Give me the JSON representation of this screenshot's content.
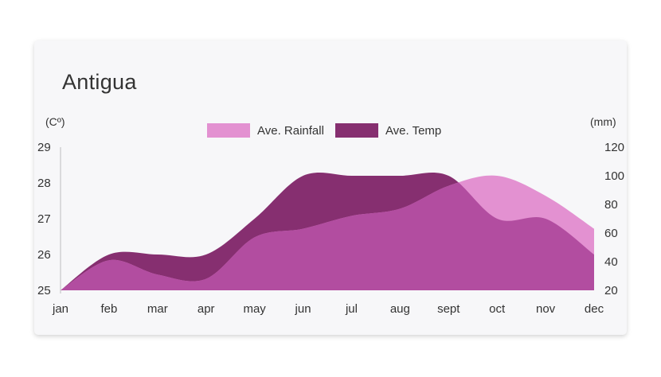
{
  "chart_data": {
    "type": "area",
    "title": "Antigua",
    "categories": [
      "jan",
      "feb",
      "mar",
      "apr",
      "may",
      "jun",
      "jul",
      "aug",
      "sept",
      "oct",
      "nov",
      "dec"
    ],
    "left_axis": {
      "unit_label": "(Cº)",
      "min": 25,
      "max": 29,
      "ticks": [
        "25",
        "26",
        "27",
        "28",
        "29"
      ]
    },
    "right_axis": {
      "unit_label": "(mm)",
      "min": 20,
      "max": 120,
      "ticks": [
        "20",
        "40",
        "60",
        "80",
        "100",
        "120"
      ]
    },
    "series": [
      {
        "name": "Ave. Temp",
        "axis": "left",
        "color": "#862f70",
        "values": [
          25.0,
          26.0,
          26.0,
          26.0,
          27.0,
          28.2,
          28.2,
          28.2,
          28.2,
          27.0,
          27.0,
          26.0
        ]
      },
      {
        "name": "Ave. Rainfall",
        "axis": "right",
        "color": "#e391d1",
        "values": [
          20,
          41,
          31,
          28,
          57,
          63,
          72,
          77,
          93,
          100,
          86,
          63
        ]
      }
    ],
    "overlap_color": "#b24da0",
    "legend_position": "top-center",
    "grid": false
  }
}
